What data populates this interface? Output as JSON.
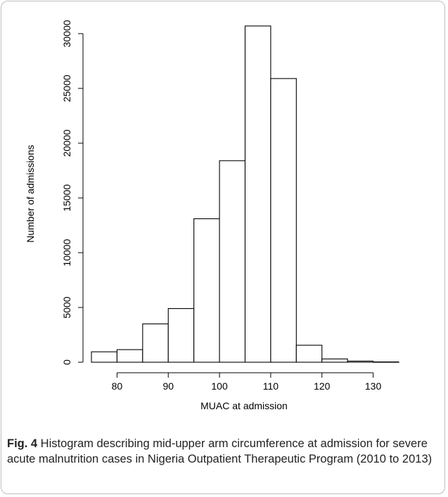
{
  "chart_data": {
    "type": "bar",
    "subtype": "histogram",
    "bins": [
      {
        "x0": 75,
        "x1": 80,
        "count": 950
      },
      {
        "x0": 80,
        "x1": 85,
        "count": 1150
      },
      {
        "x0": 85,
        "x1": 90,
        "count": 3500
      },
      {
        "x0": 90,
        "x1": 95,
        "count": 4900
      },
      {
        "x0": 95,
        "x1": 100,
        "count": 13100
      },
      {
        "x0": 100,
        "x1": 105,
        "count": 18400
      },
      {
        "x0": 105,
        "x1": 110,
        "count": 30700
      },
      {
        "x0": 110,
        "x1": 115,
        "count": 25900
      },
      {
        "x0": 115,
        "x1": 120,
        "count": 1550
      },
      {
        "x0": 120,
        "x1": 125,
        "count": 300
      },
      {
        "x0": 125,
        "x1": 130,
        "count": 100
      },
      {
        "x0": 130,
        "x1": 135,
        "count": 30
      }
    ],
    "xlabel": "MUAC at admission",
    "ylabel": "Number of admissions",
    "xticks": [
      "80",
      "90",
      "100",
      "110",
      "120",
      "130"
    ],
    "yticks": [
      "0",
      "5000",
      "10000",
      "15000",
      "20000",
      "25000",
      "30000"
    ],
    "xlim": [
      75,
      135
    ],
    "ylim": [
      0,
      30700
    ],
    "bar_fill": "#ffffff",
    "bar_stroke": "#000000",
    "grid": false,
    "legend": "none"
  },
  "caption": {
    "label": "Fig. 4",
    "text": " Histogram describing mid-upper arm circumference at admission for severe acute malnutrition cases in Nigeria Outpatient Therapeutic Program (2010 to 2013)"
  }
}
